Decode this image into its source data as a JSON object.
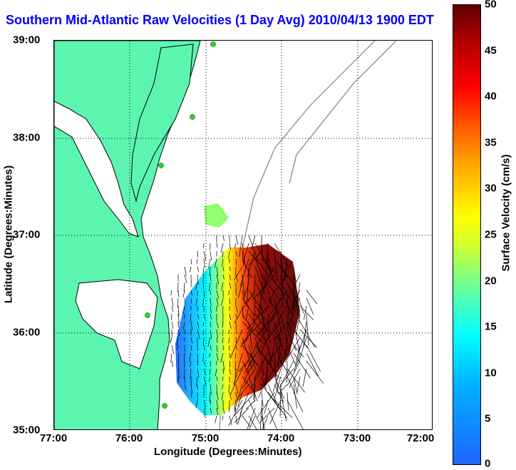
{
  "title": "Southern Mid-Atlantic Raw Velocities (1 Day Avg) 2010/04/13 1900 EDT",
  "x_axis": {
    "label": "Longitude (Degrees:Minutes)",
    "ticks": [
      "77:00",
      "76:00",
      "75:00",
      "74:00",
      "73:00",
      "72:00"
    ]
  },
  "y_axis": {
    "label": "Latitude (Degrees:Minutes)",
    "ticks": [
      "39:00",
      "38:00",
      "37:00",
      "36:00",
      "35:00"
    ]
  },
  "colorbar": {
    "label": "Surface Velocity (cm/s)",
    "ticks": [
      "50",
      "45",
      "40",
      "35",
      "30",
      "25",
      "20",
      "15",
      "10",
      "5",
      "0"
    ],
    "range": [
      0,
      50
    ]
  },
  "colors": {
    "land": "#5cf5b0",
    "title": "#0000ff",
    "coast": "#000000",
    "bathymetry": "#999999",
    "station": "#22dd22"
  }
}
